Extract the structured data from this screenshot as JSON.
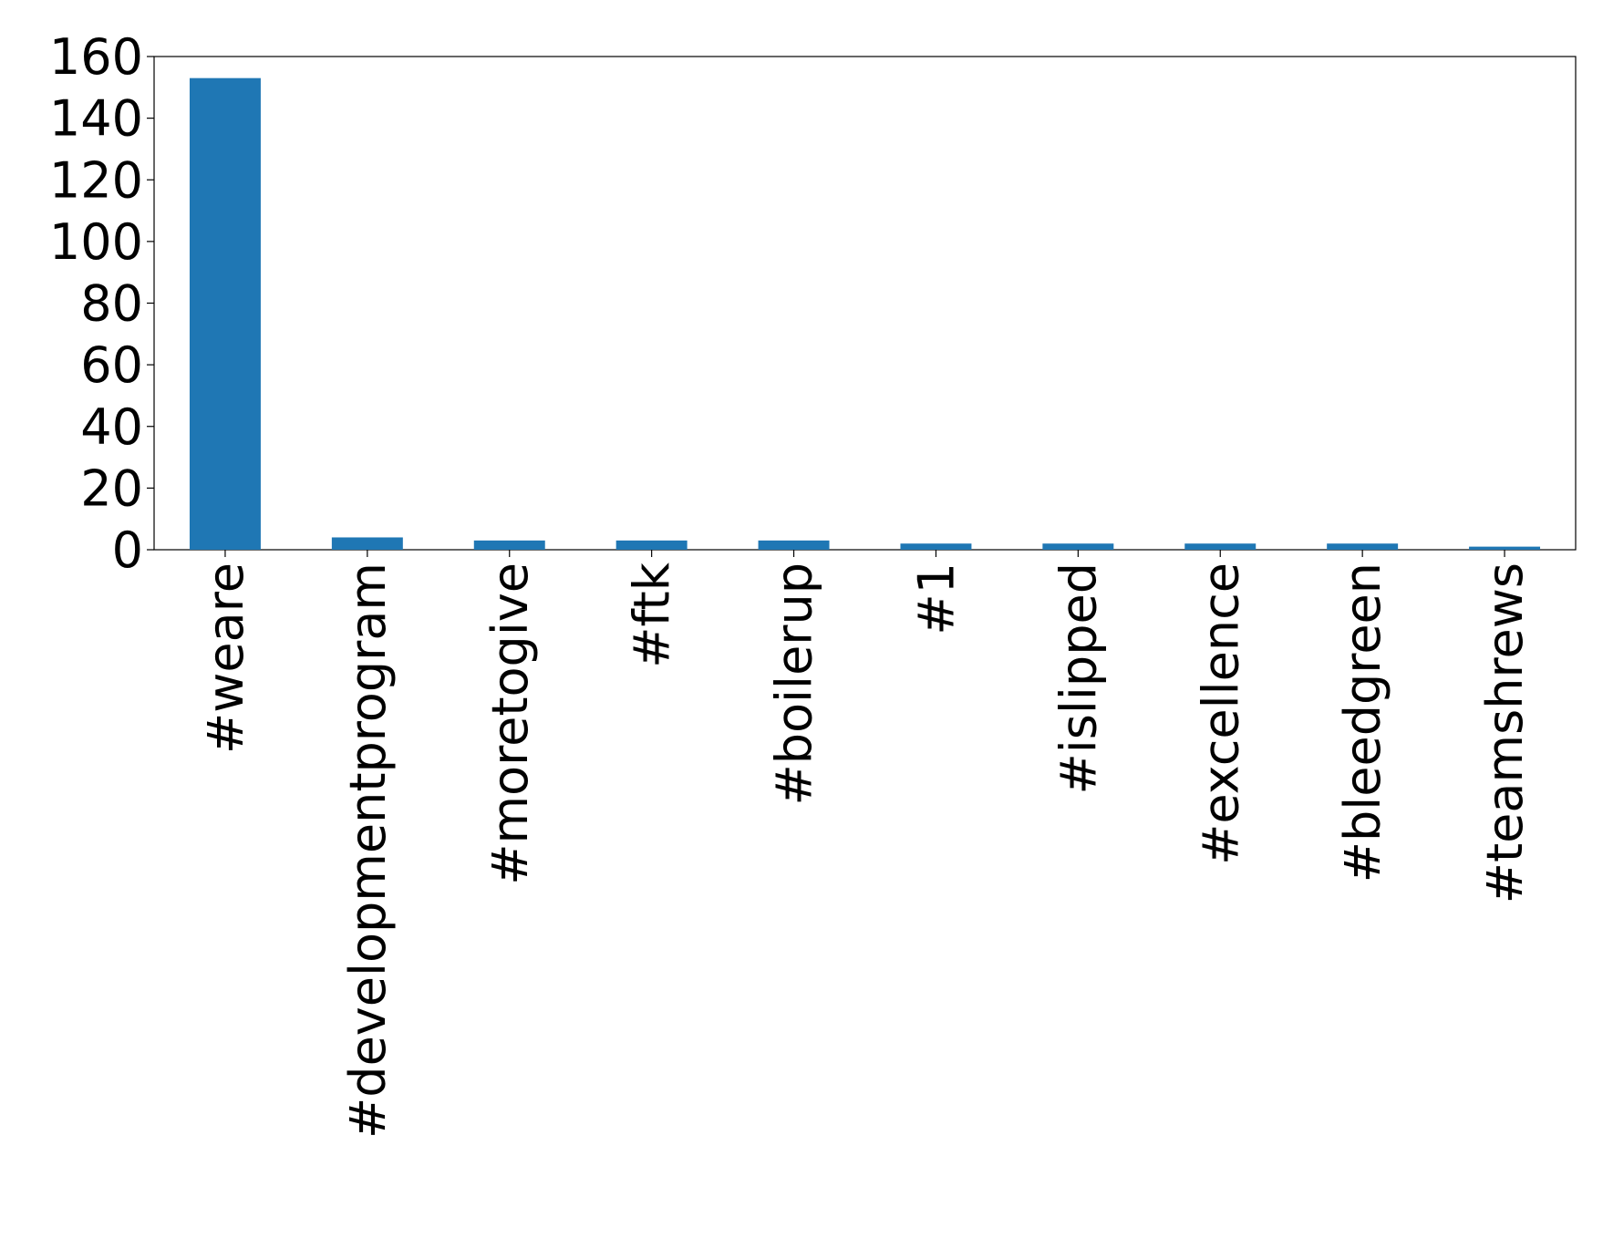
{
  "chart_data": {
    "type": "bar",
    "categories": [
      "#weare",
      "#developmentprogram",
      "#moretogive",
      "#ftk",
      "#boilerup",
      "#1",
      "#islipped",
      "#excellence",
      "#bleedgreen",
      "#teamshrews"
    ],
    "values": [
      153,
      4,
      3,
      3,
      3,
      2,
      2,
      2,
      2,
      1
    ],
    "color": "#1f77b4",
    "ylim": [
      0,
      160
    ],
    "yticks": [
      0,
      20,
      40,
      60,
      80,
      100,
      120,
      140,
      160
    ],
    "grid": false
  }
}
